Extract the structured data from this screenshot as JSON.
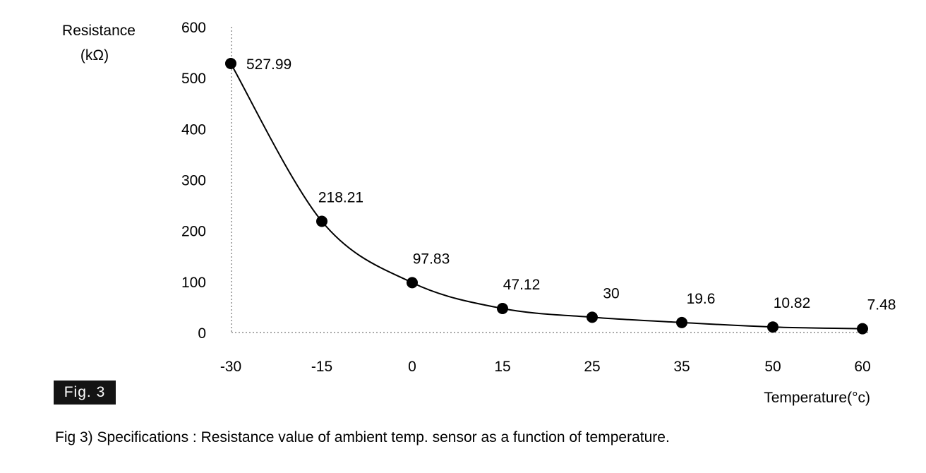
{
  "figure_badge": "Fig. 3",
  "caption": "Fig 3) Specifications : Resistance value of ambient temp. sensor as a function of temperature.",
  "chart_data": {
    "type": "line",
    "title": "",
    "ylabel_line1": "Resistance",
    "ylabel_line2": "(kΩ)",
    "xlabel": "Temperature(°c)",
    "categories": [
      "-30",
      "-15",
      "0",
      "15",
      "25",
      "35",
      "50",
      "60"
    ],
    "x": [
      -30,
      -15,
      0,
      15,
      25,
      35,
      50,
      60
    ],
    "series": [
      {
        "values": [
          527.99,
          218.21,
          97.83,
          47.12,
          30,
          19.6,
          10.82,
          7.48
        ],
        "labels": [
          "527.99",
          "218.21",
          "97.83",
          "47.12",
          "30",
          "19.6",
          "10.82",
          "7.48"
        ]
      }
    ],
    "yticks": [
      0,
      100,
      200,
      300,
      400,
      500,
      600
    ],
    "ylim": [
      0,
      600
    ],
    "line_style": "smooth",
    "marker": "filled-circle",
    "grid": false,
    "axis_style": "dotted",
    "colors": {
      "line": "#000000",
      "marker": "#000000",
      "axis": "#555555"
    }
  }
}
